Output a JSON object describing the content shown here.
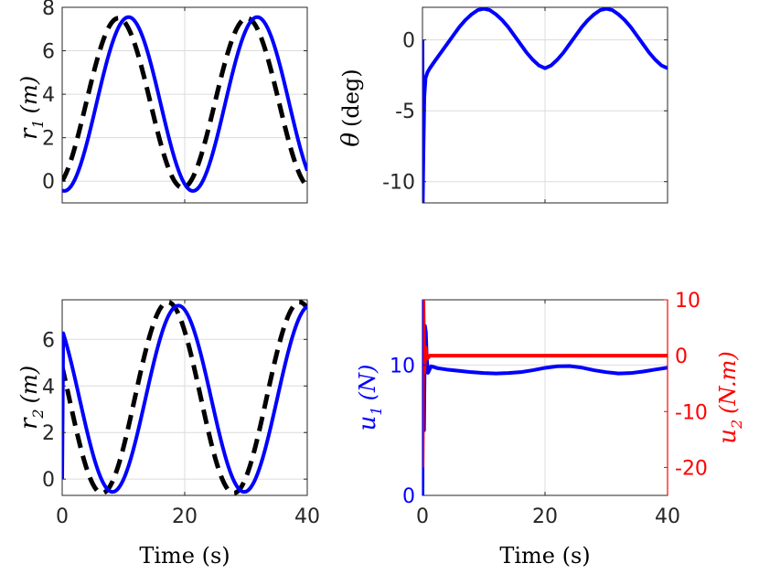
{
  "colors": {
    "reference": "#000000",
    "actual": "#0000ff",
    "u1": "#0000ff",
    "u2": "#ff0000",
    "grid": "#dcdcdc",
    "axis": "#262626"
  },
  "chart_data": [
    {
      "id": "r1",
      "type": "line",
      "ylabel_main": "r",
      "ylabel_sub": "1",
      "ylabel_unit": "(m)",
      "xlabel": "",
      "xlim": [
        0,
        40
      ],
      "ylim": [
        -1,
        8
      ],
      "xticks": [
        0,
        20,
        40
      ],
      "xtick_labels_shown": false,
      "yticks": [
        0,
        2,
        4,
        6,
        8
      ],
      "ytick_labels": [
        "0",
        "2",
        "4",
        "6",
        "8"
      ],
      "grid": true,
      "series": [
        {
          "role": "reference",
          "style": "dashed",
          "color": "#000000",
          "kind": "sine",
          "offset": 3.6,
          "amp": 3.9,
          "period": 21,
          "phase": 0.4
        },
        {
          "role": "actual",
          "style": "solid",
          "color": "#0000ff",
          "kind": "sine",
          "offset": 3.55,
          "amp": 4.0,
          "period": 21,
          "phase": -0.1
        }
      ]
    },
    {
      "id": "theta",
      "type": "line",
      "ylabel_main": "θ",
      "ylabel_unit": "(deg)",
      "xlabel": "",
      "xlim": [
        0,
        40
      ],
      "ylim": [
        -11.5,
        2.3
      ],
      "xticks": [
        0,
        20,
        40
      ],
      "xtick_labels_shown": false,
      "yticks": [
        -10,
        -5,
        0
      ],
      "ytick_labels": [
        "-10",
        "-5",
        "0"
      ],
      "grid": true,
      "series": [
        {
          "role": "actual",
          "style": "solid",
          "color": "#0000ff",
          "x": [
            0,
            0.05,
            0.15,
            0.3,
            0.5,
            0.8,
            1.2,
            2,
            3,
            4,
            5,
            6,
            7,
            8,
            9,
            10,
            11,
            12,
            13,
            14,
            15,
            16,
            17,
            18,
            19,
            20,
            21,
            22,
            23,
            24,
            25,
            26,
            27,
            28,
            29,
            30,
            31,
            32,
            33,
            34,
            35,
            36,
            37,
            38,
            39,
            40
          ],
          "y": [
            0,
            -11.5,
            -8,
            -4,
            -2.7,
            -2.3,
            -2.0,
            -1.5,
            -0.9,
            -0.3,
            0.3,
            0.9,
            1.4,
            1.8,
            2.1,
            2.2,
            2.1,
            1.8,
            1.4,
            0.9,
            0.3,
            -0.3,
            -0.9,
            -1.4,
            -1.8,
            -2.0,
            -1.8,
            -1.4,
            -0.9,
            -0.3,
            0.3,
            0.9,
            1.4,
            1.8,
            2.1,
            2.2,
            2.1,
            1.8,
            1.4,
            0.9,
            0.3,
            -0.3,
            -0.9,
            -1.4,
            -1.8,
            -2.0
          ]
        }
      ]
    },
    {
      "id": "r2",
      "type": "line",
      "ylabel_main": "r",
      "ylabel_sub": "2",
      "ylabel_unit": "(m)",
      "xlabel": "Time (s)",
      "xlim": [
        0,
        40
      ],
      "ylim": [
        -0.7,
        7.7
      ],
      "xticks": [
        0,
        20,
        40
      ],
      "xtick_labels_shown": true,
      "xtick_labels": [
        "0",
        "20",
        "40"
      ],
      "yticks": [
        0,
        2,
        4,
        6
      ],
      "ytick_labels": [
        "0",
        "2",
        "4",
        "6"
      ],
      "grid": true,
      "series": [
        {
          "role": "reference",
          "style": "dashed",
          "color": "#000000",
          "kind": "sine",
          "offset": 3.5,
          "amp": 4.1,
          "period": 21.5,
          "phase": -1.9
        },
        {
          "role": "actual",
          "style": "solid",
          "color": "#0000ff",
          "kind": "sine",
          "offset": 3.45,
          "amp": 4.0,
          "period": 21.5,
          "phase": -2.4,
          "start": [
            0,
            0
          ]
        }
      ]
    },
    {
      "id": "u",
      "type": "line",
      "ylabel_main": "u",
      "ylabel_sub": "1",
      "ylabel_unit": "(N)",
      "ylabel2_main": "u",
      "ylabel2_sub": "2",
      "ylabel2_unit": "(N.m)",
      "xlabel": "Time (s)",
      "xlim": [
        0,
        40
      ],
      "ylim": [
        0,
        15
      ],
      "ylim_right": [
        -25,
        10
      ],
      "xticks": [
        0,
        20,
        40
      ],
      "xtick_labels_shown": true,
      "xtick_labels": [
        "0",
        "20",
        "40"
      ],
      "yticks": [
        0,
        10
      ],
      "ytick_labels": [
        "0",
        "10"
      ],
      "yticks_right": [
        -20,
        -10,
        0,
        10
      ],
      "ytick_labels_right": [
        "-20",
        "-10",
        "0",
        "10"
      ],
      "grid": true,
      "series": [
        {
          "name": "u1",
          "axis": "left",
          "style": "solid",
          "color": "#0000ff",
          "x": [
            0,
            0.1,
            0.25,
            0.4,
            0.55,
            0.7,
            0.9,
            1.1,
            1.4,
            1.8,
            2.5,
            4,
            6,
            8,
            10,
            12,
            14,
            16,
            18,
            20,
            22,
            24,
            26,
            28,
            30,
            32,
            34,
            36,
            38,
            40
          ],
          "y": [
            0,
            15,
            5,
            13,
            12.5,
            10.5,
            9.4,
            9.6,
            9.9,
            9.85,
            9.75,
            9.65,
            9.55,
            9.45,
            9.38,
            9.35,
            9.38,
            9.45,
            9.6,
            9.78,
            9.9,
            9.92,
            9.8,
            9.6,
            9.45,
            9.35,
            9.38,
            9.5,
            9.65,
            9.8
          ]
        },
        {
          "name": "u2",
          "axis": "right",
          "style": "solid",
          "color": "#ff0000",
          "x": [
            0,
            0.15,
            0.3,
            0.5,
            0.8,
            1.2,
            40
          ],
          "y": [
            -20,
            10,
            -3,
            1.5,
            -0.5,
            0,
            0
          ]
        }
      ]
    }
  ]
}
